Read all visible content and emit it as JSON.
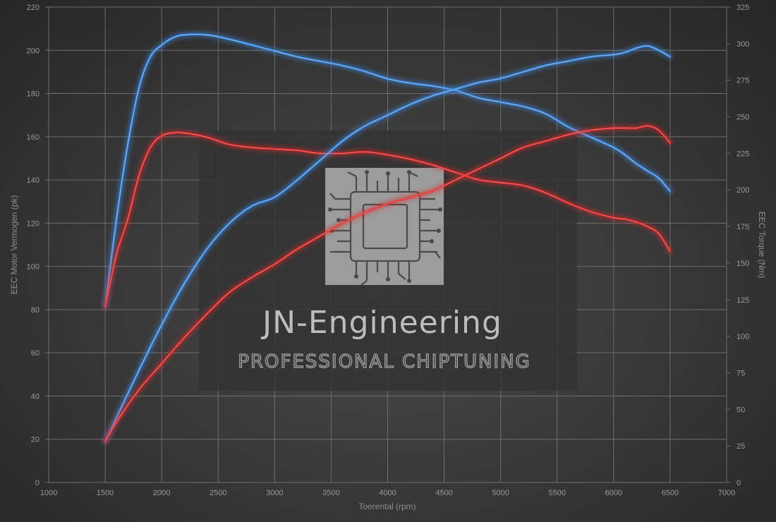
{
  "watermark": {
    "title": "JN-Engineering",
    "subtitle": "PROFESSIONAL CHIPTUNING"
  },
  "colors": {
    "tuned": "#3f8fe8",
    "stock": "#e02a2a",
    "grid": "#6e6e6e",
    "panel": "#333333"
  },
  "chart_data": {
    "type": "line",
    "xlabel": "Toerental (rpm)",
    "ylabel_left": "EEC Motor Vermogen (pk)",
    "ylabel_right": "EEC Torque (Nm)",
    "xlim": [
      1000,
      7000
    ],
    "ylim_left": [
      0,
      220
    ],
    "ylim_right": [
      0,
      325
    ],
    "x_ticks": [
      1000,
      1500,
      2000,
      2500,
      3000,
      3500,
      4000,
      4500,
      5000,
      5500,
      6000,
      6500,
      7000
    ],
    "y_left_ticks": [
      0,
      20,
      40,
      60,
      80,
      100,
      120,
      140,
      160,
      180,
      200,
      220
    ],
    "y_right_ticks": [
      0,
      25,
      50,
      75,
      100,
      125,
      150,
      175,
      200,
      225,
      250,
      275,
      300,
      325
    ],
    "grid": true,
    "series": [
      {
        "axis": "right",
        "color": "#3f8fe8",
        "x": [
          1500,
          1600,
          1700,
          1800,
          1900,
          2000,
          2100,
          2200,
          2400,
          2600,
          2800,
          3000,
          3200,
          3400,
          3600,
          3800,
          4000,
          4200,
          4400,
          4600,
          4800,
          5000,
          5200,
          5400,
          5600,
          5800,
          6000,
          6100,
          6200,
          6300,
          6400,
          6500
        ],
        "y": [
          120,
          180,
          231,
          270,
          291,
          299,
          304,
          306,
          306,
          303,
          299,
          295,
          291,
          288,
          285,
          281,
          276,
          273,
          271,
          268,
          263,
          260,
          257,
          252,
          243,
          236,
          229,
          224,
          218,
          213,
          208,
          199
        ]
      },
      {
        "axis": "right",
        "color": "#e02a2a",
        "x": [
          1500,
          1600,
          1700,
          1800,
          1900,
          2000,
          2100,
          2200,
          2400,
          2600,
          2800,
          3000,
          3200,
          3400,
          3600,
          3800,
          4000,
          4200,
          4400,
          4600,
          4800,
          5000,
          5200,
          5400,
          5600,
          5800,
          6000,
          6100,
          6200,
          6300,
          6400,
          6500
        ],
        "y": [
          120,
          156,
          180,
          210,
          229,
          237,
          239,
          239,
          236,
          231,
          229,
          228,
          227,
          225,
          225,
          226,
          224,
          221,
          217,
          212,
          207,
          205,
          203,
          198,
          191,
          185,
          181,
          180,
          178,
          175,
          170,
          158
        ]
      },
      {
        "axis": "left",
        "color": "#3f8fe8",
        "x": [
          1500,
          1600,
          1800,
          2000,
          2200,
          2400,
          2600,
          2800,
          3000,
          3200,
          3400,
          3600,
          3800,
          4000,
          4200,
          4400,
          4600,
          4800,
          5000,
          5200,
          5400,
          5600,
          5800,
          6000,
          6100,
          6200,
          6300,
          6400,
          6500
        ],
        "y": [
          19,
          30,
          52,
          73,
          92,
          108,
          120,
          128,
          132,
          140,
          149,
          158,
          165,
          170,
          175,
          179,
          182,
          185,
          187,
          190,
          193,
          195,
          197,
          198,
          199,
          201,
          202,
          200,
          197
        ]
      },
      {
        "axis": "left",
        "color": "#e02a2a",
        "x": [
          1500,
          1600,
          1800,
          2000,
          2200,
          2400,
          2600,
          2800,
          3000,
          3200,
          3400,
          3600,
          3800,
          4000,
          4200,
          4400,
          4600,
          4800,
          5000,
          5200,
          5400,
          5600,
          5800,
          6000,
          6100,
          6200,
          6300,
          6400,
          6500
        ],
        "y": [
          19,
          28,
          43,
          55,
          67,
          78,
          88,
          95,
          101,
          108,
          114,
          120,
          125,
          129,
          132,
          135,
          140,
          145,
          150,
          155,
          158,
          161,
          163,
          164,
          164,
          164,
          165,
          163,
          157
        ]
      }
    ]
  }
}
